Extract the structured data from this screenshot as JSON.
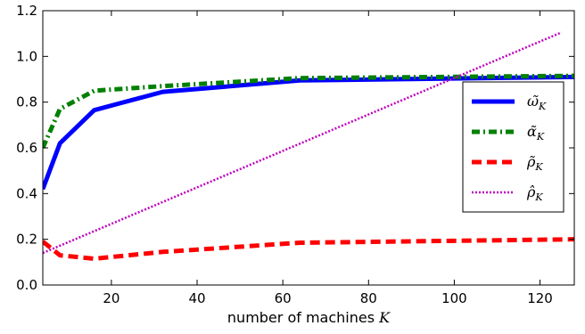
{
  "chart_data": {
    "type": "line",
    "title": "",
    "xlabel": "number of machines K",
    "ylabel": "",
    "xlim": [
      4,
      128
    ],
    "ylim": [
      0.0,
      1.2
    ],
    "x_ticks": [
      20,
      40,
      60,
      80,
      100,
      120
    ],
    "y_ticks": [
      0.0,
      0.2,
      0.4,
      0.6,
      0.8,
      1.0,
      1.2
    ],
    "y_tick_labels": [
      "0.0",
      "0.2",
      "0.4",
      "0.6",
      "0.8",
      "1.0",
      "1.2"
    ],
    "grid": false,
    "legend_position": "center-right",
    "series": [
      {
        "name": "ω̃_K",
        "legend_base": "ω̃",
        "legend_sub": "K",
        "color": "#0000ff",
        "style": "solid",
        "x": [
          4,
          8,
          16,
          32,
          64,
          128
        ],
        "y": [
          0.42,
          0.62,
          0.765,
          0.845,
          0.895,
          0.91
        ]
      },
      {
        "name": "α̃_K",
        "legend_base": "α̃",
        "legend_sub": "K",
        "color": "#008000",
        "style": "dashdot",
        "x": [
          4,
          8,
          16,
          32,
          64,
          128
        ],
        "y": [
          0.6,
          0.77,
          0.85,
          0.87,
          0.905,
          0.915
        ]
      },
      {
        "name": "ρ̃_K",
        "legend_base": "ρ̃",
        "legend_sub": "K",
        "color": "#ff0000",
        "style": "dashed",
        "x": [
          4,
          8,
          16,
          32,
          64,
          128
        ],
        "y": [
          0.19,
          0.13,
          0.115,
          0.145,
          0.185,
          0.2
        ]
      },
      {
        "name": "ρ̂_K",
        "legend_base": "ρ̂",
        "legend_sub": "K",
        "color": "#bf00bf",
        "style": "dotted",
        "x": [
          4,
          125
        ],
        "y": [
          0.14,
          1.105
        ]
      }
    ]
  }
}
